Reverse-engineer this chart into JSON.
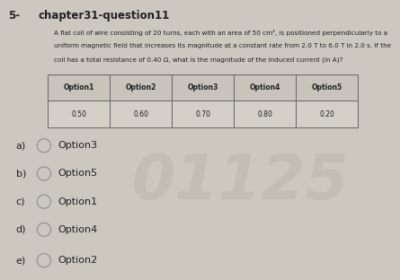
{
  "question_number": "5-",
  "title": "chapter31-question11",
  "question_text_line1": "A flat coil of wire consisting of 20 turns, each with an area of 50 cm², is positioned perpendicularly to a",
  "question_text_line2": "uniform magnetic field that increases its magnitude at a constant rate from 2.0 T to 6.0 T in 2.0 s. If the",
  "question_text_line3": "coil has a total resistance of 0.40 Ω, what is the magnitude of the induced current (in A)?",
  "table_headers": [
    "Option1",
    "Option2",
    "Option3",
    "Option4",
    "Option5"
  ],
  "table_values": [
    "0.50",
    "0.60",
    "0.70",
    "0.80",
    "0.20"
  ],
  "answer_options": [
    {
      "label": "a)",
      "text": "Option3"
    },
    {
      "label": "b)",
      "text": "Option5"
    },
    {
      "label": "c)",
      "text": "Option1"
    },
    {
      "label": "d)",
      "text": "Option4"
    },
    {
      "label": "e)",
      "text": "Option2"
    }
  ],
  "watermark": "01125",
  "bg_color": "#ccc8c0",
  "text_color": "#222222",
  "circle_color": "#999999",
  "table_header_bg": "#c8c4bc",
  "table_value_bg": "#d4d0c8",
  "table_border": "#666666"
}
